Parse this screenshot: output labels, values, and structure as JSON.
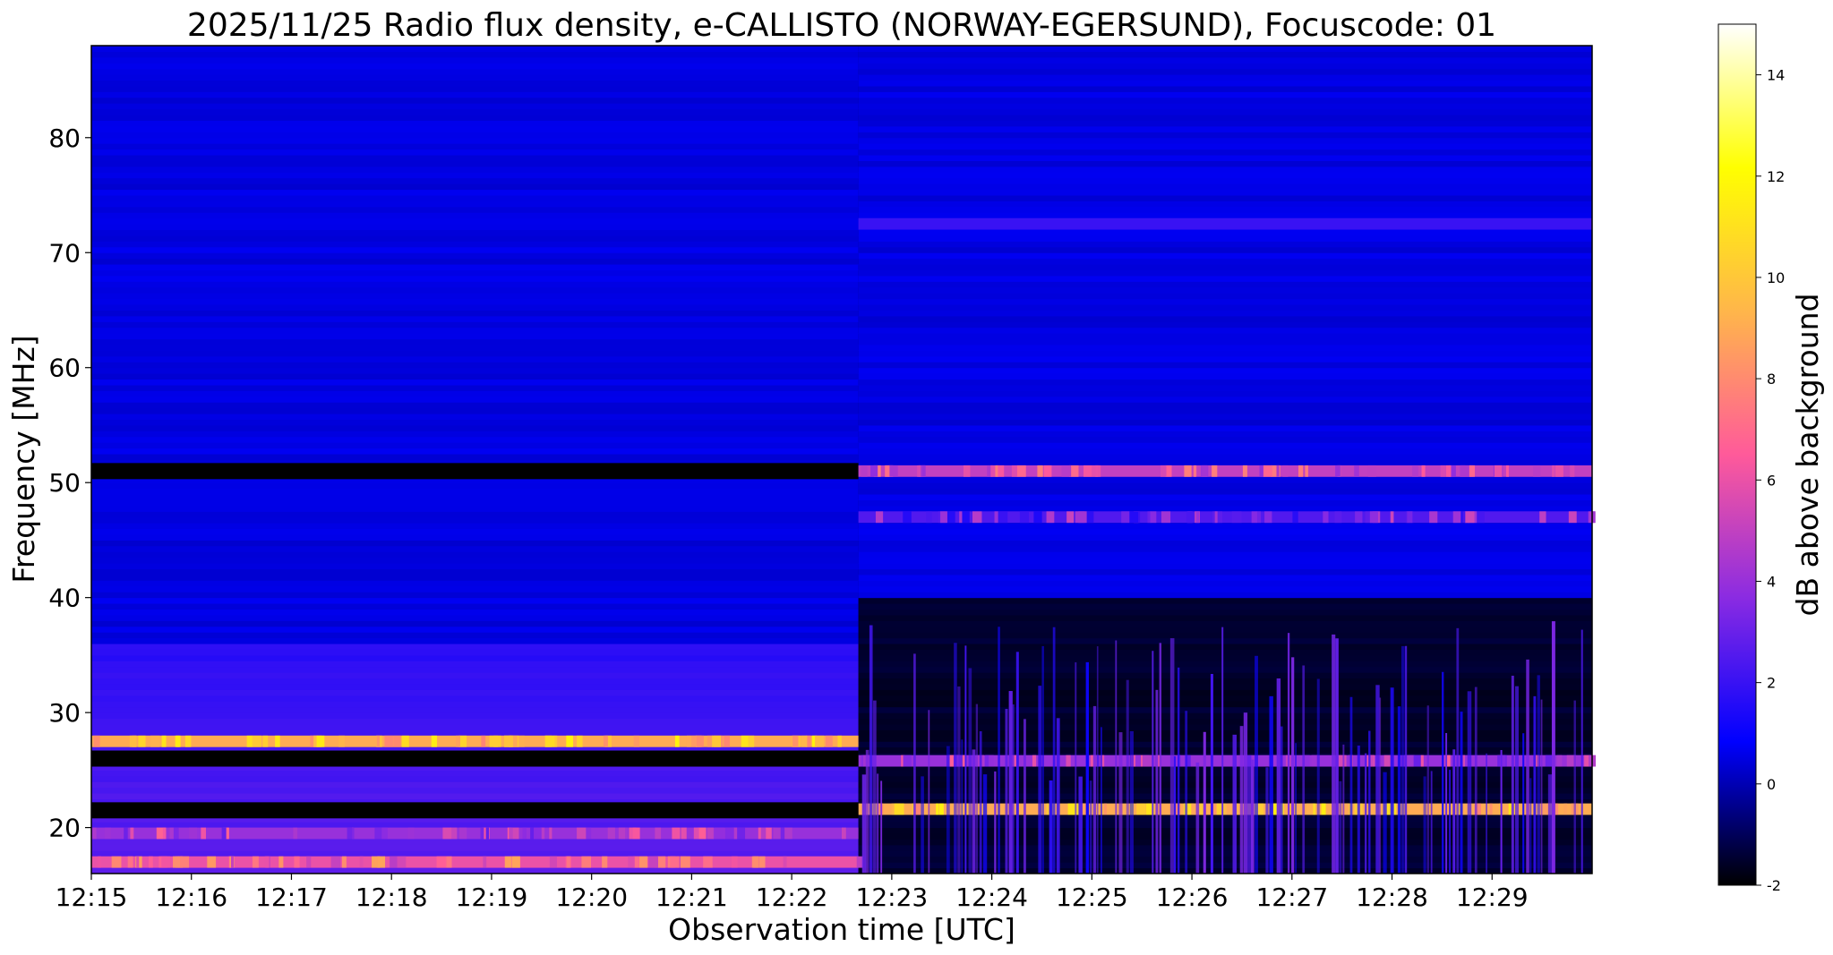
{
  "chart_data": {
    "type": "heatmap",
    "title": "2025/11/25  Radio flux density, e-CALLISTO (NORWAY-EGERSUND), Focuscode: 01",
    "xlabel": "Observation time [UTC]",
    "ylabel": "Frequency [MHz]",
    "x_ticks": [
      "12:15",
      "12:16",
      "12:17",
      "12:18",
      "12:19",
      "12:20",
      "12:21",
      "12:22",
      "12:23",
      "12:24",
      "12:25",
      "12:26",
      "12:27",
      "12:28",
      "12:29"
    ],
    "y_ticks": [
      20,
      30,
      40,
      50,
      60,
      70,
      80
    ],
    "xlim": [
      "12:15:00",
      "12:30:00"
    ],
    "ylim": [
      16,
      88
    ],
    "colorbar": {
      "label": "dB above background",
      "ticks": [
        -2,
        0,
        2,
        4,
        6,
        8,
        10,
        12,
        14
      ],
      "range": [
        -2,
        15
      ],
      "colormap": "gnuplot2",
      "colors": [
        "#000000",
        "#0000ff",
        "#8a2be2",
        "#ff5a9a",
        "#ffb64a",
        "#ffff00",
        "#ffffff"
      ]
    },
    "background_level_db": 0.5,
    "bands": [
      {
        "name": "27.5 MHz emission",
        "freq_mhz": 27.5,
        "time_start": "12:15:00",
        "time_end": "12:22:40",
        "db": 9
      },
      {
        "name": "51 MHz band",
        "freq_mhz": 51,
        "time_start": "12:15:00",
        "time_end": "12:22:40",
        "db": -2
      },
      {
        "name": "51 MHz band",
        "freq_mhz": 51,
        "time_start": "12:22:40",
        "time_end": "12:30:00",
        "db": 5
      },
      {
        "name": "47 MHz band",
        "freq_mhz": 47,
        "time_start": "12:22:40",
        "time_end": "12:30:00",
        "db": 2.5
      },
      {
        "name": "72.5 MHz band",
        "freq_mhz": 72.5,
        "time_start": "12:22:40",
        "time_end": "12:30:00",
        "db": 2
      },
      {
        "name": "25.8 MHz band",
        "freq_mhz": 25.8,
        "time_start": "12:22:40",
        "time_end": "12:30:00",
        "db": 4
      },
      {
        "name": "21.6 MHz band",
        "freq_mhz": 21.6,
        "time_start": "12:22:40",
        "time_end": "12:30:00",
        "db": 9
      },
      {
        "name": "21.5 MHz gap",
        "freq_mhz": 21.5,
        "time_start": "12:15:00",
        "time_end": "12:22:40",
        "db": -2
      },
      {
        "name": "26 MHz gap",
        "freq_mhz": 26,
        "time_start": "12:15:00",
        "time_end": "12:22:40",
        "db": -2
      },
      {
        "name": "19.5 MHz emission",
        "freq_mhz": 19.5,
        "time_start": "12:15:00",
        "time_end": "12:22:40",
        "db": 4
      },
      {
        "name": "17 MHz emission",
        "freq_mhz": 17,
        "time_start": "12:15:00",
        "time_end": "12:22:40",
        "db": 6
      }
    ],
    "transition_time": "12:22:40"
  }
}
